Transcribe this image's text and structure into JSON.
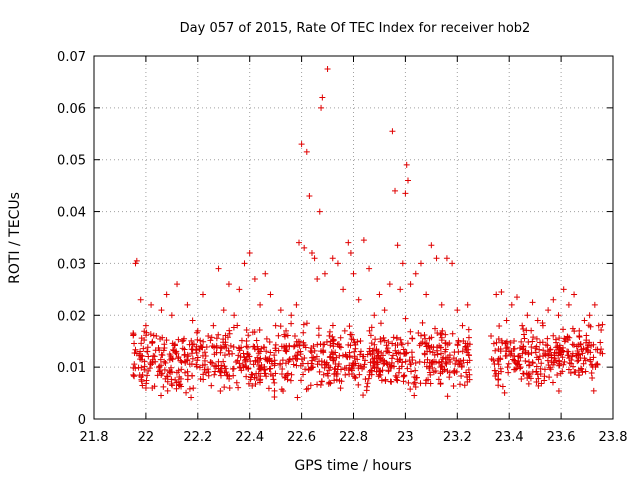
{
  "chart_data": {
    "type": "scatter",
    "title": "Day 057 of 2015, Rate Of TEC Index for receiver hob2",
    "xlabel": "GPS time / hours",
    "ylabel": "ROTI / TECUs",
    "xlim": [
      21.8,
      23.8
    ],
    "ylim": [
      0,
      0.07
    ],
    "xticks": [
      21.8,
      22,
      22.2,
      22.4,
      22.6,
      22.8,
      23,
      23.2,
      23.4,
      23.6,
      23.8
    ],
    "xtick_labels": [
      "21.8",
      "22",
      "22.2",
      "22.4",
      "22.6",
      "22.8",
      "23",
      "23.2",
      "23.4",
      "23.6",
      "23.8"
    ],
    "yticks": [
      0,
      0.01,
      0.02,
      0.03,
      0.04,
      0.05,
      0.06,
      0.07
    ],
    "ytick_labels": [
      "0",
      "0.01",
      "0.02",
      "0.03",
      "0.04",
      "0.05",
      "0.06",
      "0.07"
    ],
    "grid": true,
    "marker": "plus",
    "color": "#e00000",
    "series": [
      {
        "x": [
          21.96,
          21.965,
          21.98,
          22.0,
          22.02,
          22.04,
          22.06,
          22.08,
          22.1,
          22.12,
          22.14,
          22.16,
          22.18,
          22.2,
          22.22,
          22.24,
          22.26,
          22.28,
          22.3,
          22.32,
          22.34,
          22.36,
          22.38,
          22.4,
          22.42,
          22.44,
          22.46,
          22.48,
          22.5,
          22.52,
          22.54,
          22.56,
          22.58,
          22.59,
          22.6,
          22.61,
          22.62,
          22.63,
          22.64,
          22.65,
          22.66,
          22.67,
          22.675,
          22.68,
          22.69,
          22.7,
          22.72,
          22.74,
          22.76,
          22.78,
          22.79,
          22.8,
          22.82,
          22.84,
          22.86,
          22.88,
          22.9,
          22.92,
          22.94,
          22.95,
          22.96,
          22.97,
          22.98,
          22.99,
          23.0,
          23.005,
          23.01,
          23.02,
          23.04,
          23.06,
          23.08,
          23.1,
          23.12,
          23.14,
          23.16,
          23.18,
          23.2,
          23.22,
          23.24,
          23.33,
          23.35,
          23.37,
          23.39,
          23.41,
          23.43,
          23.45,
          23.47,
          23.49,
          23.51,
          23.53,
          23.55,
          23.57,
          23.59,
          23.61,
          23.63,
          23.65,
          23.67,
          23.69,
          23.71,
          23.73,
          23.745
        ],
        "y": [
          0.03,
          0.0305,
          0.023,
          0.018,
          0.022,
          0.016,
          0.021,
          0.024,
          0.02,
          0.026,
          0.015,
          0.022,
          0.019,
          0.017,
          0.024,
          0.016,
          0.018,
          0.029,
          0.021,
          0.026,
          0.02,
          0.025,
          0.03,
          0.032,
          0.027,
          0.022,
          0.028,
          0.024,
          0.018,
          0.021,
          0.017,
          0.02,
          0.022,
          0.034,
          0.053,
          0.033,
          0.0515,
          0.043,
          0.032,
          0.031,
          0.027,
          0.04,
          0.06,
          0.062,
          0.028,
          0.0675,
          0.031,
          0.03,
          0.025,
          0.034,
          0.032,
          0.028,
          0.023,
          0.0345,
          0.029,
          0.02,
          0.024,
          0.021,
          0.026,
          0.0555,
          0.044,
          0.0335,
          0.025,
          0.03,
          0.0435,
          0.049,
          0.046,
          0.026,
          0.028,
          0.03,
          0.024,
          0.0335,
          0.031,
          0.022,
          0.031,
          0.03,
          0.021,
          0.018,
          0.022,
          0.016,
          0.024,
          0.0245,
          0.019,
          0.022,
          0.0235,
          0.018,
          0.02,
          0.0225,
          0.019,
          0.018,
          0.021,
          0.023,
          0.02,
          0.025,
          0.022,
          0.024,
          0.017,
          0.019,
          0.02,
          0.022,
          0.018
        ]
      }
    ],
    "dense_bands": [
      {
        "x_range": [
          21.95,
          23.25
        ],
        "y_range": [
          0.003,
          0.02
        ],
        "count": 900
      },
      {
        "x_range": [
          23.33,
          23.76
        ],
        "y_range": [
          0.004,
          0.02
        ],
        "count": 280
      }
    ]
  }
}
